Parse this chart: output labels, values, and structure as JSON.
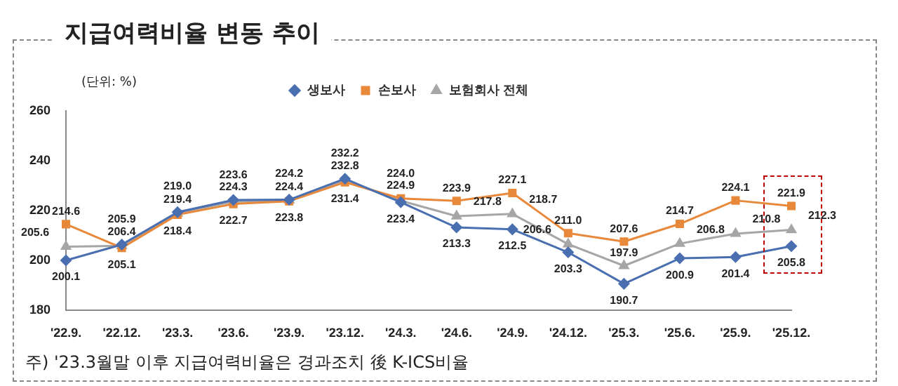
{
  "chart_data": {
    "type": "line",
    "title": "지급여력비율 변동 추이",
    "categories": [
      "'22.9.",
      "'22.12.",
      "'23.3.",
      "'23.6.",
      "'23.9.",
      "'23.12.",
      "'24.3.",
      "'24.6.",
      "'24.9.",
      "'24.12.",
      "'25.3.",
      "'25.6.",
      "'25.9.",
      "'25.12."
    ],
    "series": [
      {
        "name": "생보사",
        "color": "#4a6fb0",
        "marker": "diamond",
        "values": [
          200.1,
          206.4,
          219.4,
          224.3,
          224.4,
          232.8,
          223.4,
          213.3,
          212.5,
          203.3,
          190.7,
          200.9,
          201.4,
          205.8
        ],
        "value_labels": [
          "200.1",
          "206.4",
          "219.4",
          "224.3",
          "224.4",
          "232.8",
          "223.4",
          "213.3",
          "212.5",
          "203.3",
          "190.7",
          "200.9",
          "201.4",
          "205.8"
        ]
      },
      {
        "name": "손보사",
        "color": "#e8883a",
        "marker": "square",
        "values": [
          214.6,
          205.1,
          218.4,
          222.7,
          223.8,
          231.4,
          224.9,
          223.9,
          227.1,
          211.0,
          207.6,
          214.7,
          224.1,
          221.9
        ],
        "value_labels": [
          "214.6",
          "205.1",
          "218.4",
          "222.7",
          "223.8",
          "231.4",
          "224.9",
          "223.9",
          "227.1",
          "211.0",
          "207.6",
          "214.7",
          "224.1",
          "221.9"
        ]
      },
      {
        "name": "보험회사 전체",
        "color": "#a6a6a6",
        "marker": "triangle",
        "values": [
          205.6,
          205.9,
          219.0,
          223.6,
          224.2,
          232.2,
          224.0,
          217.8,
          218.7,
          206.6,
          197.9,
          206.8,
          210.8,
          212.3
        ],
        "value_labels": [
          "205.6",
          "205.9",
          "219.0",
          "223.6",
          "224.2",
          "232.2",
          "224.0",
          "217.8",
          "218.7",
          "206.6",
          "197.9",
          "206.8",
          "210.8",
          "212.3"
        ]
      }
    ],
    "ylim": [
      180,
      260
    ],
    "yticks": [
      180,
      200,
      220,
      240,
      260
    ],
    "grid": false,
    "legend": "top",
    "annotations": [
      "(단위: %)",
      "주) '23.3월말 이후 지급여력비율은 경과조치 後 K-ICS비율"
    ]
  }
}
